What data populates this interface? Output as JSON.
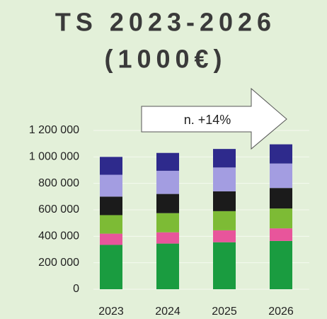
{
  "chart_data": {
    "type": "bar",
    "stacked": true,
    "title": "TS 2023-2026",
    "subtitle": "(1000€)",
    "annotation": "n. +14%",
    "categories": [
      "2023",
      "2024",
      "2025",
      "2026"
    ],
    "series": [
      {
        "color": "#1a9c40",
        "values": [
          335000,
          345000,
          355000,
          365000
        ]
      },
      {
        "color": "#e8559b",
        "values": [
          85000,
          85000,
          90000,
          95000
        ]
      },
      {
        "color": "#7dbb35",
        "values": [
          140000,
          145000,
          145000,
          150000
        ]
      },
      {
        "color": "#1b1b1b",
        "values": [
          140000,
          145000,
          150000,
          155000
        ]
      },
      {
        "color": "#a39de1",
        "values": [
          165000,
          175000,
          180000,
          185000
        ]
      },
      {
        "color": "#2e2a8c",
        "values": [
          135000,
          135000,
          140000,
          145000
        ]
      }
    ],
    "ylim": [
      0,
      1200000
    ],
    "yticks": [
      0,
      {
        "value": 200000,
        "label": "200 000"
      },
      {
        "value": 400000,
        "label": "400 000"
      },
      {
        "value": 600000,
        "label": "600 000"
      },
      {
        "value": 800000,
        "label": "800 000"
      },
      {
        "value": 1000000,
        "label": "1 000 000"
      },
      {
        "value": 1200000,
        "label": "1 200 000"
      }
    ],
    "grid": true
  }
}
